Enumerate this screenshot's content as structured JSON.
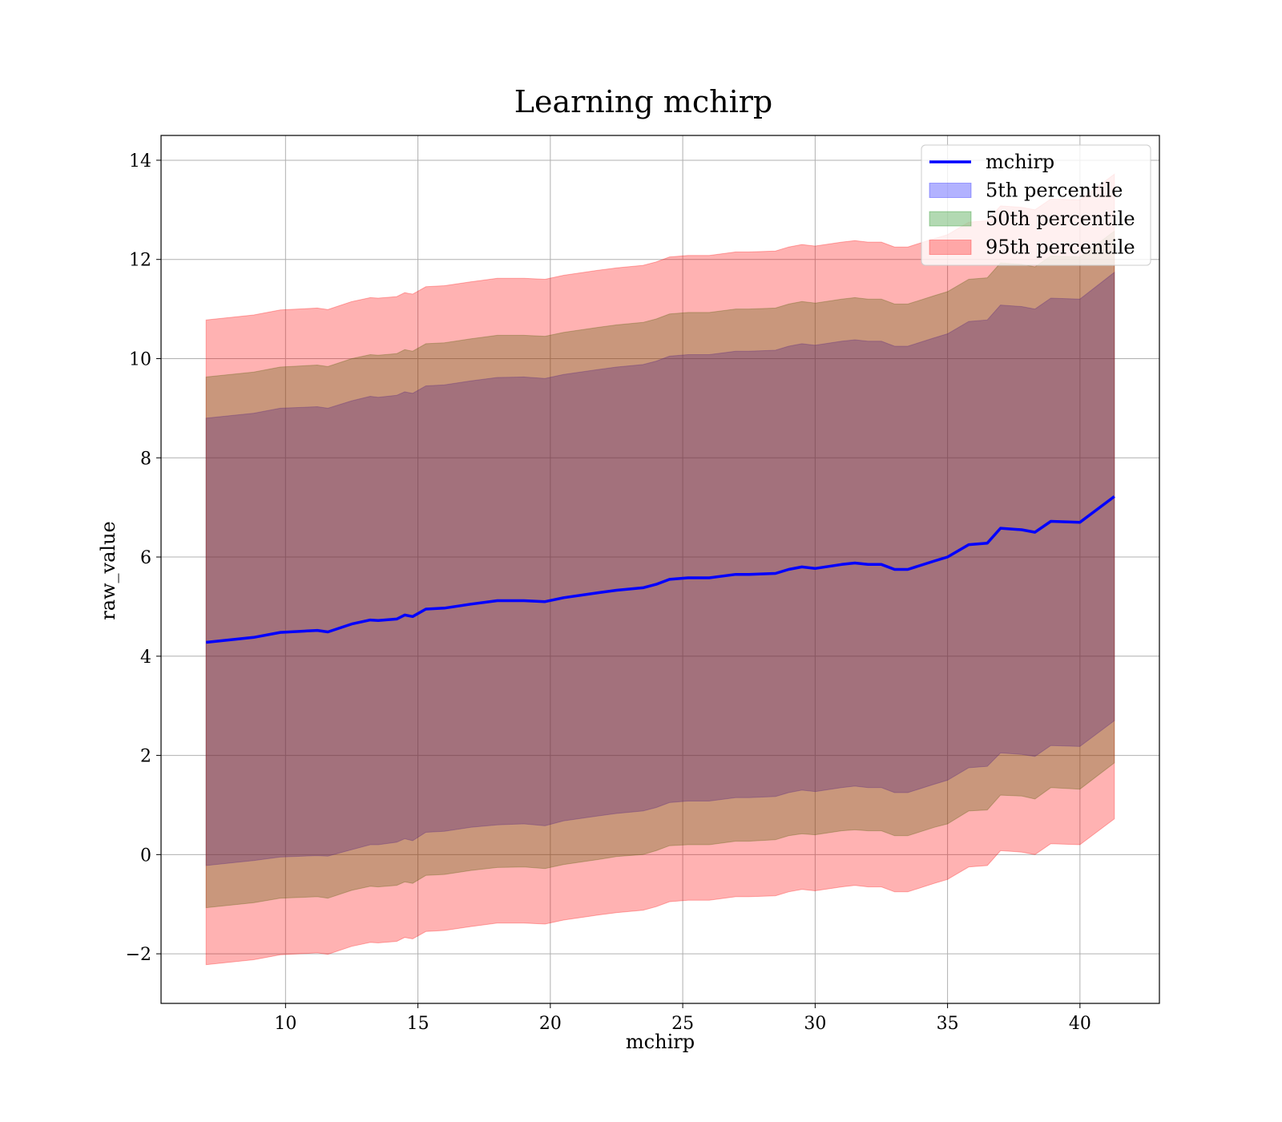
{
  "chart_data": {
    "type": "line",
    "title": "Learning mchirp",
    "xlabel": "mchirp",
    "ylabel": "raw_value",
    "xlim": [
      5.3,
      43.0
    ],
    "ylim": [
      -3,
      14.5
    ],
    "xticks": [
      10,
      15,
      20,
      25,
      30,
      35,
      40
    ],
    "yticks": [
      -2,
      0,
      2,
      4,
      6,
      8,
      10,
      12,
      14
    ],
    "grid": true,
    "legend_position": "top-right",
    "x": [
      7.0,
      8.8,
      9.8,
      11.2,
      11.6,
      12.5,
      13.2,
      13.5,
      14.2,
      14.5,
      14.8,
      15.3,
      16.0,
      17.0,
      18.0,
      19.0,
      19.8,
      20.5,
      21.8,
      22.5,
      23.5,
      24.0,
      24.5,
      25.2,
      26.0,
      27.0,
      27.5,
      28.5,
      29.0,
      29.5,
      30.0,
      31.0,
      31.5,
      32.0,
      32.5,
      33.0,
      33.5,
      34.5,
      35.0,
      35.8,
      36.5,
      37.0,
      37.8,
      38.3,
      38.9,
      40.0,
      41.3
    ],
    "series": [
      {
        "name": "mchirp",
        "color": "#0000ff",
        "values": [
          4.28,
          4.38,
          4.48,
          4.52,
          4.49,
          4.65,
          4.73,
          4.72,
          4.75,
          4.83,
          4.8,
          4.95,
          4.97,
          5.05,
          5.12,
          5.12,
          5.1,
          5.18,
          5.28,
          5.33,
          5.38,
          5.45,
          5.55,
          5.58,
          5.58,
          5.65,
          5.65,
          5.67,
          5.75,
          5.8,
          5.77,
          5.85,
          5.88,
          5.85,
          5.85,
          5.75,
          5.75,
          5.92,
          6.0,
          6.25,
          6.28,
          6.58,
          6.55,
          6.5,
          6.72,
          6.7,
          7.22
        ]
      }
    ],
    "bands": [
      {
        "name": "5th percentile",
        "color": "#0000ff",
        "alpha": 0.3,
        "lower": [
          -0.22,
          -0.12,
          -0.05,
          -0.02,
          -0.03,
          0.1,
          0.2,
          0.2,
          0.25,
          0.32,
          0.28,
          0.45,
          0.47,
          0.55,
          0.6,
          0.62,
          0.58,
          0.68,
          0.78,
          0.83,
          0.88,
          0.95,
          1.05,
          1.08,
          1.08,
          1.15,
          1.15,
          1.17,
          1.25,
          1.3,
          1.27,
          1.35,
          1.38,
          1.35,
          1.35,
          1.25,
          1.25,
          1.42,
          1.5,
          1.75,
          1.78,
          2.05,
          2.02,
          1.98,
          2.2,
          2.18,
          2.7
        ],
        "upper": [
          8.8,
          8.9,
          9.0,
          9.03,
          9.0,
          9.15,
          9.24,
          9.22,
          9.26,
          9.33,
          9.3,
          9.45,
          9.47,
          9.55,
          9.62,
          9.63,
          9.6,
          9.68,
          9.78,
          9.83,
          9.88,
          9.95,
          10.05,
          10.08,
          10.08,
          10.15,
          10.15,
          10.17,
          10.25,
          10.3,
          10.27,
          10.35,
          10.38,
          10.35,
          10.35,
          10.25,
          10.25,
          10.42,
          10.5,
          10.75,
          10.78,
          11.08,
          11.05,
          11.0,
          11.22,
          11.2,
          11.74
        ]
      },
      {
        "name": "50th percentile",
        "color": "#008000",
        "alpha": 0.3,
        "lower": [
          -1.07,
          -0.97,
          -0.88,
          -0.85,
          -0.88,
          -0.72,
          -0.64,
          -0.65,
          -0.62,
          -0.55,
          -0.58,
          -0.42,
          -0.4,
          -0.32,
          -0.26,
          -0.25,
          -0.28,
          -0.2,
          -0.1,
          -0.04,
          0.0,
          0.08,
          0.18,
          0.2,
          0.2,
          0.27,
          0.27,
          0.3,
          0.38,
          0.42,
          0.4,
          0.48,
          0.5,
          0.48,
          0.48,
          0.38,
          0.38,
          0.55,
          0.62,
          0.88,
          0.9,
          1.2,
          1.18,
          1.12,
          1.35,
          1.32,
          1.85
        ],
        "upper": [
          9.63,
          9.73,
          9.83,
          9.87,
          9.84,
          10.0,
          10.08,
          10.07,
          10.1,
          10.18,
          10.15,
          10.3,
          10.32,
          10.4,
          10.47,
          10.47,
          10.45,
          10.53,
          10.63,
          10.68,
          10.73,
          10.8,
          10.9,
          10.93,
          10.93,
          11.0,
          11.0,
          11.02,
          11.1,
          11.15,
          11.12,
          11.2,
          11.23,
          11.2,
          11.2,
          11.1,
          11.1,
          11.27,
          11.35,
          11.6,
          11.63,
          11.93,
          11.9,
          11.85,
          12.07,
          12.05,
          12.57
        ]
      },
      {
        "name": "95th percentile",
        "color": "#ff0000",
        "alpha": 0.3,
        "lower": [
          -2.22,
          -2.12,
          -2.02,
          -1.98,
          -2.01,
          -1.85,
          -1.77,
          -1.78,
          -1.75,
          -1.67,
          -1.7,
          -1.55,
          -1.53,
          -1.45,
          -1.38,
          -1.38,
          -1.4,
          -1.32,
          -1.22,
          -1.17,
          -1.12,
          -1.05,
          -0.95,
          -0.92,
          -0.92,
          -0.85,
          -0.85,
          -0.83,
          -0.75,
          -0.7,
          -0.73,
          -0.65,
          -0.62,
          -0.65,
          -0.65,
          -0.75,
          -0.75,
          -0.58,
          -0.5,
          -0.25,
          -0.22,
          0.08,
          0.05,
          0.0,
          0.22,
          0.2,
          0.72
        ],
        "upper": [
          10.78,
          10.88,
          10.98,
          11.02,
          10.99,
          11.15,
          11.23,
          11.22,
          11.25,
          11.33,
          11.3,
          11.45,
          11.47,
          11.55,
          11.62,
          11.62,
          11.6,
          11.68,
          11.78,
          11.83,
          11.88,
          11.95,
          12.05,
          12.08,
          12.08,
          12.15,
          12.15,
          12.17,
          12.25,
          12.3,
          12.27,
          12.35,
          12.38,
          12.35,
          12.35,
          12.25,
          12.25,
          12.42,
          12.5,
          12.75,
          12.78,
          13.08,
          13.05,
          13.0,
          13.22,
          13.2,
          13.72
        ]
      }
    ],
    "legend": [
      {
        "label": "mchirp",
        "kind": "line",
        "color": "#0000ff"
      },
      {
        "label": "5th percentile",
        "kind": "patch",
        "color": "#0000ff"
      },
      {
        "label": "50th percentile",
        "kind": "patch",
        "color": "#008000"
      },
      {
        "label": "95th percentile",
        "kind": "patch",
        "color": "#ff0000"
      }
    ]
  }
}
